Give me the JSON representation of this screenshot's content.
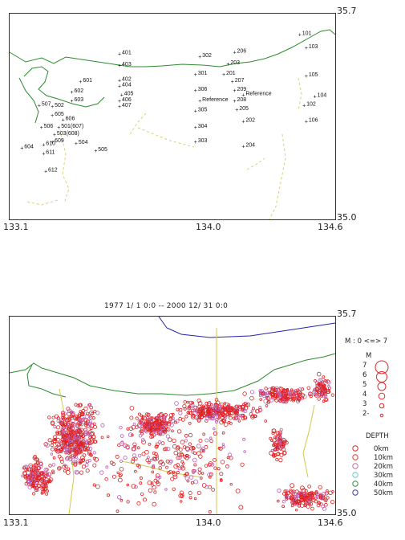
{
  "top_map": {
    "axis": {
      "lat_max": "35.7",
      "lat_min": "35.0",
      "lon_min": "133.1",
      "lon_mid": "134.0",
      "lon_max": "134.6"
    },
    "stations": [
      {
        "label": "101",
        "lon": 134.44,
        "lat": 35.63
      },
      {
        "label": "103",
        "lon": 134.47,
        "lat": 35.585
      },
      {
        "label": "105",
        "lon": 134.47,
        "lat": 35.49
      },
      {
        "label": "104",
        "lon": 134.51,
        "lat": 35.42
      },
      {
        "label": "102",
        "lon": 134.46,
        "lat": 35.39
      },
      {
        "label": "106",
        "lon": 134.47,
        "lat": 35.335
      },
      {
        "label": "206",
        "lon": 134.14,
        "lat": 35.57
      },
      {
        "label": "203",
        "lon": 134.11,
        "lat": 35.53
      },
      {
        "label": "201",
        "lon": 134.09,
        "lat": 35.495
      },
      {
        "label": "207",
        "lon": 134.13,
        "lat": 35.47
      },
      {
        "label": "209",
        "lon": 134.14,
        "lat": 35.44
      },
      {
        "label": "208",
        "lon": 134.14,
        "lat": 35.405
      },
      {
        "label": "205",
        "lon": 134.15,
        "lat": 35.375
      },
      {
        "label": "202",
        "lon": 134.18,
        "lat": 35.335
      },
      {
        "label": "204",
        "lon": 134.18,
        "lat": 35.25
      },
      {
        "label": "Reference",
        "lon": 134.18,
        "lat": 35.425
      },
      {
        "label": "Reference",
        "lon": 133.98,
        "lat": 35.405
      },
      {
        "label": "302",
        "lon": 133.98,
        "lat": 35.555
      },
      {
        "label": "301",
        "lon": 133.96,
        "lat": 35.495
      },
      {
        "label": "306",
        "lon": 133.96,
        "lat": 35.44
      },
      {
        "label": "305",
        "lon": 133.96,
        "lat": 35.37
      },
      {
        "label": "304",
        "lon": 133.96,
        "lat": 35.315
      },
      {
        "label": "303",
        "lon": 133.96,
        "lat": 35.265
      },
      {
        "label": "401",
        "lon": 133.61,
        "lat": 35.565
      },
      {
        "label": "403",
        "lon": 133.61,
        "lat": 35.525
      },
      {
        "label": "402",
        "lon": 133.61,
        "lat": 35.475
      },
      {
        "label": "404",
        "lon": 133.61,
        "lat": 35.455
      },
      {
        "label": "405",
        "lon": 133.62,
        "lat": 35.425
      },
      {
        "label": "406",
        "lon": 133.61,
        "lat": 35.405
      },
      {
        "label": "407",
        "lon": 133.61,
        "lat": 35.385
      },
      {
        "label": "601",
        "lon": 133.43,
        "lat": 35.47
      },
      {
        "label": "602",
        "lon": 133.39,
        "lat": 35.435
      },
      {
        "label": "603",
        "lon": 133.39,
        "lat": 35.405
      },
      {
        "label": "507",
        "lon": 133.24,
        "lat": 35.39
      },
      {
        "label": "502",
        "lon": 133.3,
        "lat": 35.385
      },
      {
        "label": "605",
        "lon": 133.3,
        "lat": 35.355
      },
      {
        "label": "606",
        "lon": 133.35,
        "lat": 35.34
      },
      {
        "label": "506",
        "lon": 133.25,
        "lat": 35.315
      },
      {
        "label": "501(607)",
        "lon": 133.33,
        "lat": 35.315
      },
      {
        "label": "503(608)",
        "lon": 133.31,
        "lat": 35.29
      },
      {
        "label": "609",
        "lon": 133.3,
        "lat": 35.265
      },
      {
        "label": "504",
        "lon": 133.41,
        "lat": 35.26
      },
      {
        "label": "610",
        "lon": 133.26,
        "lat": 35.255
      },
      {
        "label": "604",
        "lon": 133.16,
        "lat": 35.245
      },
      {
        "label": "505",
        "lon": 133.5,
        "lat": 35.235
      },
      {
        "label": "611",
        "lon": 133.26,
        "lat": 35.225
      },
      {
        "label": "612",
        "lon": 133.27,
        "lat": 35.165
      }
    ]
  },
  "bottom_map": {
    "title": "1977  1/ 1  0:0 -- 2000  12/ 31  0:0",
    "axis": {
      "lat_max": "35.7",
      "lat_min": "35.0",
      "lon_min": "133.1",
      "lon_mid": "134.0",
      "lon_max": "134.6"
    },
    "legend": {
      "magnitude_range": "M : 0  <=>  7",
      "magnitude_header": "M",
      "magnitudes": [
        "7",
        "6",
        "5",
        "4",
        "3",
        "2-"
      ],
      "depth_header": "DEPTH",
      "depths": [
        {
          "label": "0km",
          "color": "#d92b2b"
        },
        {
          "label": "10km",
          "color": "#e0403c"
        },
        {
          "label": "20km",
          "color": "#c86aa6"
        },
        {
          "label": "30km",
          "color": "#6ec8c8"
        },
        {
          "label": "40km",
          "color": "#3a8f3a"
        },
        {
          "label": "50km",
          "color": "#3a3aa0"
        }
      ]
    },
    "colors": {
      "shallow": "#e02020",
      "mid": "#b860b8",
      "coast": "#2e8b2e",
      "prefecture_border": "#d4c84a",
      "frame_line": "#2222aa"
    }
  }
}
